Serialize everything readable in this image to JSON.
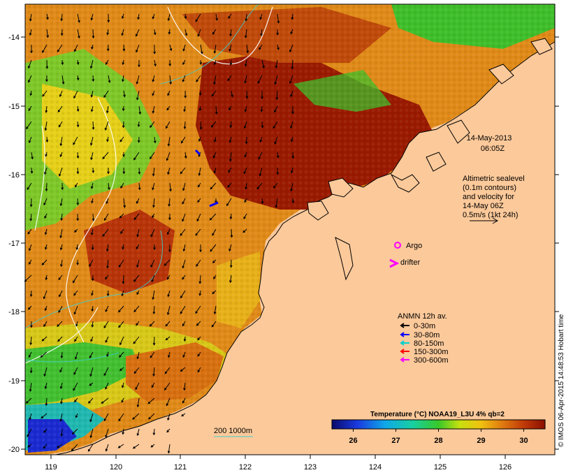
{
  "map": {
    "date_label_line1": "14-May-2013",
    "date_label_line2": "06:05Z",
    "altimetry_note": [
      "Altimetric sealevel",
      "(0.1m contours)",
      "and velocity for",
      "14-May 06Z",
      "0.5m/s (1kt 24h)"
    ],
    "argo_label": "Argo",
    "drifter_label": "drifter",
    "anmn_title": "ANMN 12h av.",
    "anmn_depths": [
      {
        "label": "0-30m",
        "color": "#000000"
      },
      {
        "label": "30-80m",
        "color": "#0000ff"
      },
      {
        "label": "80-150m",
        "color": "#00d0d0"
      },
      {
        "label": "150-300m",
        "color": "#ff0000"
      },
      {
        "label": "300-600m",
        "color": "#ff00ff"
      }
    ],
    "bathy_label": "200  1000m",
    "colorbar_title": "Temperature (°C) NOAA19_L3U 4% qb=2",
    "colorbar_ticks": [
      "26",
      "27",
      "28",
      "29",
      "30"
    ],
    "colorbar_range": [
      25.5,
      30.5
    ],
    "lon_ticks": [
      "119",
      "120",
      "121",
      "122",
      "123",
      "124",
      "125",
      "126"
    ],
    "lat_ticks": [
      "-14",
      "-15",
      "-16",
      "-17",
      "-18",
      "-19",
      "-20"
    ],
    "credit": "© IMOS 06-Apr-2015 14:48:53 Hobart time",
    "colors": {
      "land": "#fcc99a",
      "warm_dark": "#9a1a00",
      "warm": "#d45a0a",
      "mid": "#e8a21a",
      "cool_green": "#3fbf2a",
      "cool_cyan": "#2ab8c8",
      "cool_blue": "#1a2ad0"
    }
  }
}
